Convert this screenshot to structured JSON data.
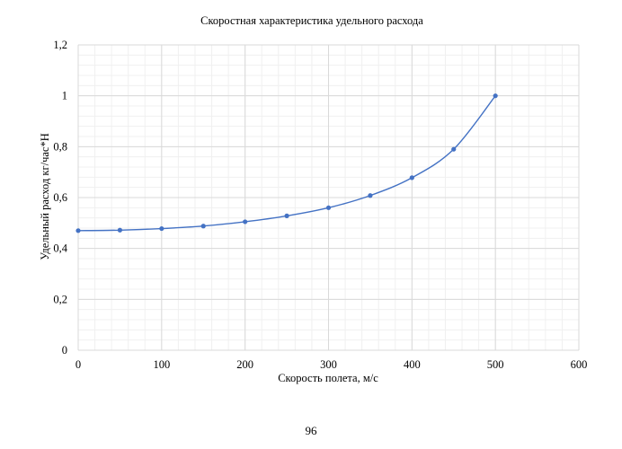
{
  "page": {
    "number": "96"
  },
  "chart_data": {
    "type": "line",
    "title": "Скоростная характеристика удельного расхода",
    "xlabel": "Скорость полета, м/с",
    "ylabel": "Удельный расход кг/час*Н",
    "xlim": [
      0,
      600
    ],
    "ylim": [
      0,
      1.2
    ],
    "xticks": [
      0,
      100,
      200,
      300,
      400,
      500,
      600
    ],
    "xtick_labels": [
      "0",
      "100",
      "200",
      "300",
      "400",
      "500",
      "600"
    ],
    "yticks": [
      0,
      0.2,
      0.4,
      0.6,
      0.8,
      1,
      1.2
    ],
    "ytick_labels": [
      "0",
      "0,2",
      "0,4",
      "0,6",
      "0,8",
      "1",
      "1,2"
    ],
    "grid": true,
    "smooth": true,
    "legend": "none",
    "colors": {
      "series": "#4472c4",
      "grid_major": "#d9d9d9",
      "grid_minor": "#f0f0f0"
    },
    "series": [
      {
        "x": [
          0,
          50,
          100,
          150,
          200,
          250,
          300,
          350,
          400,
          450,
          500
        ],
        "values": [
          0.47,
          0.472,
          0.478,
          0.488,
          0.505,
          0.528,
          0.56,
          0.608,
          0.678,
          0.79,
          1.0
        ]
      }
    ]
  }
}
